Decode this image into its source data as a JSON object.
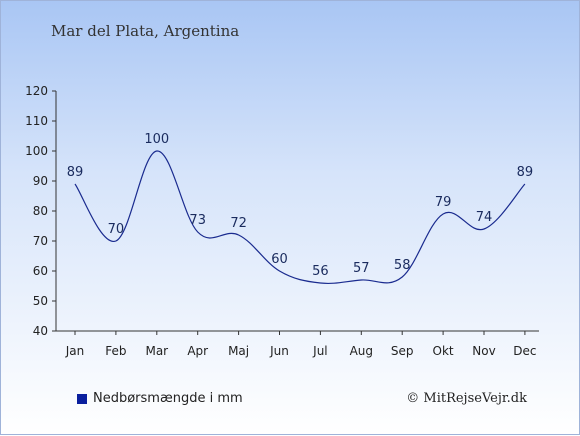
{
  "title": "Mar del Plata, Argentina",
  "legend_label": "Nedbørsmængde i mm",
  "credit": "© MitRejseVejr.dk",
  "colors": {
    "line": "#1a2b8f",
    "swatch": "#0a1f9e"
  },
  "chart_data": {
    "type": "line",
    "categories": [
      "Jan",
      "Feb",
      "Mar",
      "Apr",
      "Maj",
      "Jun",
      "Jul",
      "Aug",
      "Sep",
      "Okt",
      "Nov",
      "Dec"
    ],
    "series": [
      {
        "name": "Nedbørsmængde i mm",
        "values": [
          89,
          70,
          100,
          73,
          72,
          60,
          56,
          57,
          58,
          79,
          74,
          89
        ]
      }
    ],
    "ylim": [
      40,
      120
    ],
    "yticks": [
      40,
      50,
      60,
      70,
      80,
      90,
      100,
      110,
      120
    ],
    "grid": false,
    "legend": "bottom-left"
  }
}
